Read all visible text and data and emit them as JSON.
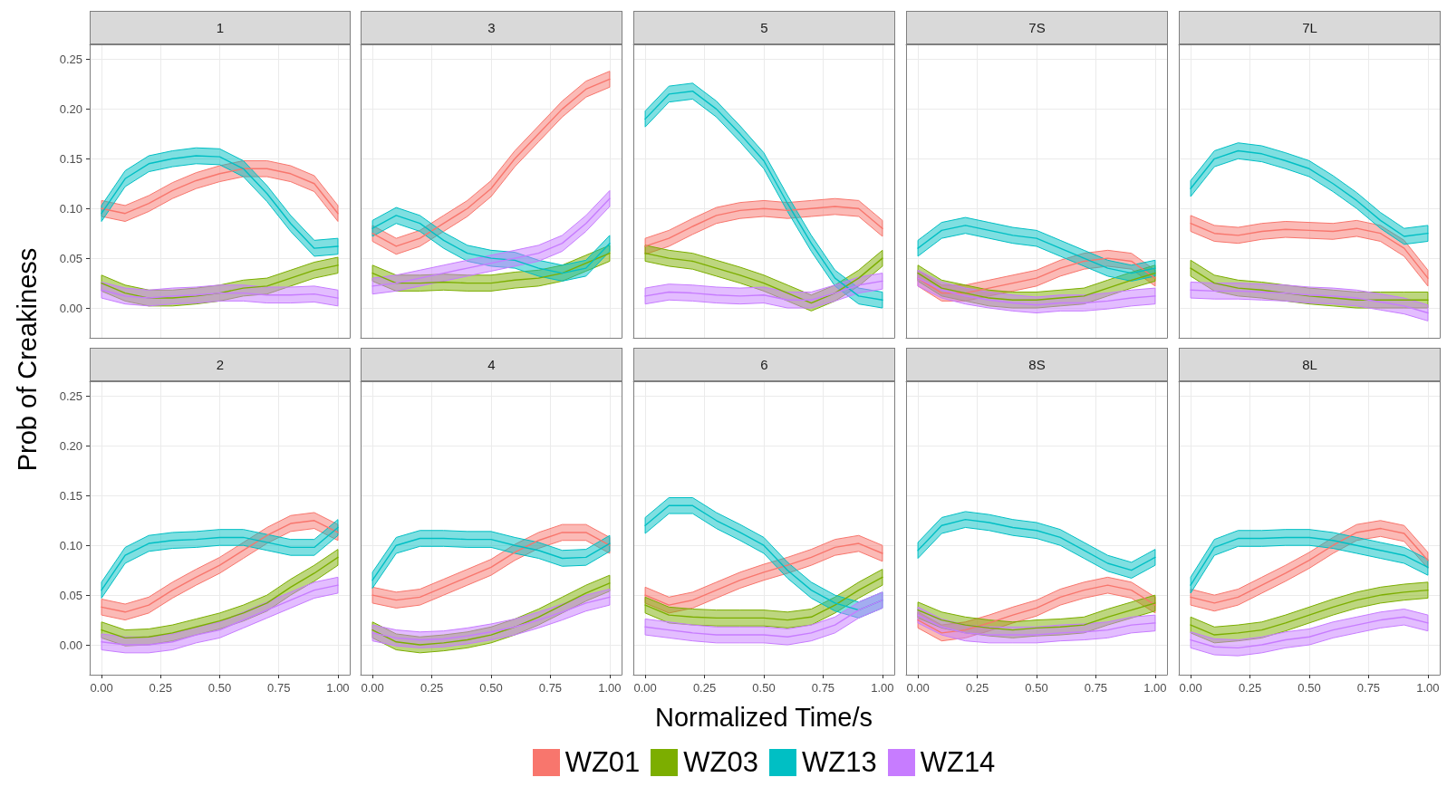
{
  "chart_data": [
    {
      "type": "line",
      "title": "1",
      "ylabel": "Prob of Creakiness",
      "grid": true,
      "tick_labels": "y",
      "x": [
        0,
        0.1,
        0.2,
        0.3,
        0.4,
        0.5,
        0.6,
        0.7,
        0.8,
        0.9,
        1
      ],
      "xlim": [
        -0.05,
        1.05
      ],
      "xticks": [
        0,
        0.25,
        0.5,
        0.75,
        1
      ],
      "ylim": [
        -0.03,
        0.265
      ],
      "yticks": [
        {
          "value": 0,
          "label": "0.00"
        },
        {
          "value": 0.05,
          "label": "0.05"
        },
        {
          "value": 0.1,
          "label": "0.10"
        },
        {
          "value": 0.15,
          "label": "0.15"
        },
        {
          "value": 0.2,
          "label": "0.20"
        },
        {
          "value": 0.25,
          "label": "0.25"
        }
      ],
      "series": [
        {
          "color": "#f8766d",
          "values": [
            0.1,
            0.095,
            0.105,
            0.118,
            0.128,
            0.135,
            0.14,
            0.14,
            0.135,
            0.125,
            0.095
          ],
          "lower": [
            0.092,
            0.087,
            0.097,
            0.11,
            0.12,
            0.127,
            0.132,
            0.132,
            0.127,
            0.117,
            0.087
          ],
          "upper": [
            0.108,
            0.103,
            0.113,
            0.126,
            0.136,
            0.143,
            0.148,
            0.148,
            0.143,
            0.133,
            0.103
          ]
        },
        {
          "color": "#7cae00",
          "values": [
            0.025,
            0.015,
            0.01,
            0.01,
            0.012,
            0.015,
            0.02,
            0.022,
            0.03,
            0.038,
            0.043
          ],
          "lower": [
            0.017,
            0.007,
            0.002,
            0.002,
            0.004,
            0.007,
            0.012,
            0.014,
            0.022,
            0.03,
            0.035
          ],
          "upper": [
            0.033,
            0.023,
            0.018,
            0.018,
            0.02,
            0.023,
            0.028,
            0.03,
            0.038,
            0.046,
            0.051
          ]
        },
        {
          "color": "#00bfc4",
          "values": [
            0.095,
            0.13,
            0.145,
            0.15,
            0.153,
            0.152,
            0.14,
            0.115,
            0.085,
            0.06,
            0.062
          ],
          "lower": [
            0.087,
            0.122,
            0.137,
            0.142,
            0.145,
            0.144,
            0.132,
            0.107,
            0.077,
            0.052,
            0.054
          ],
          "upper": [
            0.103,
            0.138,
            0.153,
            0.158,
            0.161,
            0.16,
            0.148,
            0.123,
            0.093,
            0.068,
            0.07
          ]
        },
        {
          "color": "#c77cff",
          "values": [
            0.018,
            0.012,
            0.01,
            0.012,
            0.013,
            0.015,
            0.015,
            0.013,
            0.013,
            0.014,
            0.01
          ],
          "lower": [
            0.01,
            0.004,
            0.002,
            0.004,
            0.005,
            0.007,
            0.007,
            0.005,
            0.005,
            0.006,
            0.002
          ],
          "upper": [
            0.026,
            0.02,
            0.018,
            0.02,
            0.021,
            0.023,
            0.023,
            0.021,
            0.021,
            0.022,
            0.018
          ]
        }
      ]
    },
    {
      "type": "line",
      "title": "3",
      "grid": true,
      "tick_labels": false,
      "x": [
        0,
        0.1,
        0.2,
        0.3,
        0.4,
        0.5,
        0.6,
        0.7,
        0.8,
        0.9,
        1
      ],
      "xlim": [
        -0.05,
        1.05
      ],
      "xticks": [
        0,
        0.25,
        0.5,
        0.75,
        1
      ],
      "ylim": [
        -0.03,
        0.265
      ],
      "yticks": [
        0,
        0.05,
        0.1,
        0.15,
        0.2,
        0.25
      ],
      "series": [
        {
          "color": "#f8766d",
          "values": [
            0.075,
            0.062,
            0.07,
            0.085,
            0.1,
            0.12,
            0.15,
            0.175,
            0.2,
            0.22,
            0.23
          ],
          "lower": [
            0.067,
            0.054,
            0.062,
            0.077,
            0.092,
            0.112,
            0.142,
            0.167,
            0.192,
            0.212,
            0.222
          ],
          "upper": [
            0.083,
            0.07,
            0.078,
            0.093,
            0.108,
            0.128,
            0.158,
            0.183,
            0.208,
            0.228,
            0.238
          ]
        },
        {
          "color": "#7cae00",
          "values": [
            0.035,
            0.025,
            0.025,
            0.026,
            0.025,
            0.025,
            0.028,
            0.03,
            0.035,
            0.045,
            0.055
          ],
          "lower": [
            0.027,
            0.017,
            0.017,
            0.018,
            0.017,
            0.017,
            0.02,
            0.022,
            0.027,
            0.037,
            0.047
          ],
          "upper": [
            0.043,
            0.033,
            0.033,
            0.034,
            0.033,
            0.033,
            0.036,
            0.038,
            0.043,
            0.053,
            0.063
          ]
        },
        {
          "color": "#00bfc4",
          "values": [
            0.08,
            0.093,
            0.085,
            0.068,
            0.055,
            0.05,
            0.048,
            0.04,
            0.035,
            0.04,
            0.065
          ],
          "lower": [
            0.072,
            0.085,
            0.077,
            0.06,
            0.047,
            0.042,
            0.04,
            0.032,
            0.027,
            0.032,
            0.057
          ],
          "upper": [
            0.088,
            0.101,
            0.093,
            0.076,
            0.063,
            0.058,
            0.056,
            0.048,
            0.043,
            0.048,
            0.073
          ]
        },
        {
          "color": "#c77cff",
          "values": [
            0.022,
            0.025,
            0.03,
            0.035,
            0.04,
            0.045,
            0.05,
            0.055,
            0.065,
            0.085,
            0.11
          ],
          "lower": [
            0.014,
            0.017,
            0.022,
            0.027,
            0.032,
            0.037,
            0.042,
            0.047,
            0.057,
            0.077,
            0.102
          ],
          "upper": [
            0.03,
            0.033,
            0.038,
            0.043,
            0.048,
            0.053,
            0.058,
            0.063,
            0.073,
            0.093,
            0.118
          ]
        }
      ]
    },
    {
      "type": "line",
      "title": "5",
      "grid": true,
      "tick_labels": false,
      "x": [
        0,
        0.1,
        0.2,
        0.3,
        0.4,
        0.5,
        0.6,
        0.7,
        0.8,
        0.9,
        1
      ],
      "xlim": [
        -0.05,
        1.05
      ],
      "xticks": [
        0,
        0.25,
        0.5,
        0.75,
        1
      ],
      "ylim": [
        -0.03,
        0.265
      ],
      "yticks": [
        0,
        0.05,
        0.1,
        0.15,
        0.2,
        0.25
      ],
      "series": [
        {
          "color": "#f8766d",
          "values": [
            0.062,
            0.07,
            0.082,
            0.093,
            0.098,
            0.1,
            0.098,
            0.1,
            0.102,
            0.1,
            0.08
          ],
          "lower": [
            0.054,
            0.062,
            0.074,
            0.085,
            0.09,
            0.092,
            0.09,
            0.092,
            0.094,
            0.092,
            0.072
          ],
          "upper": [
            0.07,
            0.078,
            0.09,
            0.101,
            0.106,
            0.108,
            0.106,
            0.108,
            0.11,
            0.108,
            0.088
          ]
        },
        {
          "color": "#7cae00",
          "values": [
            0.055,
            0.05,
            0.047,
            0.04,
            0.033,
            0.025,
            0.015,
            0.005,
            0.015,
            0.03,
            0.05
          ],
          "lower": [
            0.047,
            0.042,
            0.039,
            0.032,
            0.025,
            0.017,
            0.007,
            -0.003,
            0.007,
            0.022,
            0.042
          ],
          "upper": [
            0.063,
            0.058,
            0.055,
            0.048,
            0.041,
            0.033,
            0.023,
            0.013,
            0.023,
            0.038,
            0.058
          ]
        },
        {
          "color": "#00bfc4",
          "values": [
            0.19,
            0.215,
            0.218,
            0.2,
            0.175,
            0.148,
            0.105,
            0.065,
            0.03,
            0.012,
            0.008
          ],
          "lower": [
            0.182,
            0.207,
            0.21,
            0.192,
            0.167,
            0.14,
            0.097,
            0.057,
            0.022,
            0.004,
            0
          ],
          "upper": [
            0.198,
            0.223,
            0.226,
            0.208,
            0.183,
            0.156,
            0.113,
            0.073,
            0.038,
            0.02,
            0.016
          ]
        },
        {
          "color": "#c77cff",
          "values": [
            0.012,
            0.016,
            0.015,
            0.013,
            0.012,
            0.013,
            0.008,
            0.008,
            0.015,
            0.023,
            0.027
          ],
          "lower": [
            0.004,
            0.008,
            0.007,
            0.005,
            0.004,
            0.005,
            0,
            0,
            0.007,
            0.015,
            0.019
          ],
          "upper": [
            0.02,
            0.024,
            0.023,
            0.021,
            0.02,
            0.021,
            0.016,
            0.016,
            0.023,
            0.031,
            0.035
          ]
        }
      ]
    },
    {
      "type": "line",
      "title": "7S",
      "grid": true,
      "tick_labels": false,
      "x": [
        0,
        0.1,
        0.2,
        0.3,
        0.4,
        0.5,
        0.6,
        0.7,
        0.8,
        0.9,
        1
      ],
      "xlim": [
        -0.05,
        1.05
      ],
      "xticks": [
        0,
        0.25,
        0.5,
        0.75,
        1
      ],
      "ylim": [
        -0.03,
        0.265
      ],
      "yticks": [
        0,
        0.05,
        0.1,
        0.15,
        0.2,
        0.25
      ],
      "series": [
        {
          "color": "#f8766d",
          "values": [
            0.03,
            0.015,
            0.015,
            0.02,
            0.025,
            0.03,
            0.04,
            0.047,
            0.05,
            0.047,
            0.03
          ],
          "lower": [
            0.022,
            0.007,
            0.007,
            0.012,
            0.017,
            0.022,
            0.032,
            0.039,
            0.042,
            0.039,
            0.022
          ],
          "upper": [
            0.038,
            0.023,
            0.023,
            0.028,
            0.033,
            0.038,
            0.048,
            0.055,
            0.058,
            0.055,
            0.038
          ]
        },
        {
          "color": "#7cae00",
          "values": [
            0.035,
            0.02,
            0.015,
            0.01,
            0.008,
            0.008,
            0.01,
            0.012,
            0.02,
            0.028,
            0.035
          ],
          "lower": [
            0.027,
            0.012,
            0.007,
            0.002,
            0,
            0,
            0.002,
            0.004,
            0.012,
            0.02,
            0.027
          ],
          "upper": [
            0.043,
            0.028,
            0.023,
            0.018,
            0.016,
            0.016,
            0.018,
            0.02,
            0.028,
            0.036,
            0.043
          ]
        },
        {
          "color": "#00bfc4",
          "values": [
            0.06,
            0.078,
            0.083,
            0.078,
            0.073,
            0.07,
            0.06,
            0.05,
            0.04,
            0.035,
            0.04
          ],
          "lower": [
            0.052,
            0.07,
            0.075,
            0.07,
            0.065,
            0.062,
            0.052,
            0.042,
            0.032,
            0.027,
            0.032
          ],
          "upper": [
            0.068,
            0.086,
            0.091,
            0.086,
            0.081,
            0.078,
            0.068,
            0.058,
            0.048,
            0.043,
            0.048
          ]
        },
        {
          "color": "#c77cff",
          "values": [
            0.03,
            0.018,
            0.012,
            0.008,
            0.005,
            0.003,
            0.005,
            0.005,
            0.007,
            0.01,
            0.012
          ],
          "lower": [
            0.022,
            0.01,
            0.004,
            0,
            -0.003,
            -0.005,
            -0.003,
            -0.003,
            -0.001,
            0.002,
            0.004
          ],
          "upper": [
            0.038,
            0.026,
            0.02,
            0.016,
            0.013,
            0.011,
            0.013,
            0.013,
            0.015,
            0.018,
            0.02
          ]
        }
      ]
    },
    {
      "type": "line",
      "title": "7L",
      "grid": true,
      "tick_labels": false,
      "x": [
        0,
        0.1,
        0.2,
        0.3,
        0.4,
        0.5,
        0.6,
        0.7,
        0.8,
        0.9,
        1
      ],
      "xlim": [
        -0.05,
        1.05
      ],
      "xticks": [
        0,
        0.25,
        0.5,
        0.75,
        1
      ],
      "ylim": [
        -0.03,
        0.265
      ],
      "yticks": [
        0,
        0.05,
        0.1,
        0.15,
        0.2,
        0.25
      ],
      "series": [
        {
          "color": "#f8766d",
          "values": [
            0.085,
            0.075,
            0.073,
            0.077,
            0.079,
            0.078,
            0.077,
            0.08,
            0.075,
            0.06,
            0.03
          ],
          "lower": [
            0.077,
            0.067,
            0.065,
            0.069,
            0.071,
            0.07,
            0.069,
            0.072,
            0.067,
            0.052,
            0.022
          ],
          "upper": [
            0.093,
            0.083,
            0.081,
            0.085,
            0.087,
            0.086,
            0.085,
            0.088,
            0.083,
            0.068,
            0.038
          ]
        },
        {
          "color": "#7cae00",
          "values": [
            0.04,
            0.025,
            0.02,
            0.018,
            0.015,
            0.012,
            0.01,
            0.008,
            0.008,
            0.008,
            0.008
          ],
          "lower": [
            0.032,
            0.017,
            0.012,
            0.01,
            0.007,
            0.004,
            0.002,
            0,
            0,
            0,
            0
          ],
          "upper": [
            0.048,
            0.033,
            0.028,
            0.026,
            0.023,
            0.02,
            0.018,
            0.016,
            0.016,
            0.016,
            0.016
          ]
        },
        {
          "color": "#00bfc4",
          "values": [
            0.12,
            0.15,
            0.158,
            0.155,
            0.148,
            0.14,
            0.125,
            0.108,
            0.088,
            0.072,
            0.075
          ],
          "lower": [
            0.112,
            0.142,
            0.15,
            0.147,
            0.14,
            0.132,
            0.117,
            0.1,
            0.08,
            0.064,
            0.067
          ],
          "upper": [
            0.128,
            0.158,
            0.166,
            0.163,
            0.156,
            0.148,
            0.133,
            0.116,
            0.096,
            0.08,
            0.083
          ]
        },
        {
          "color": "#c77cff",
          "values": [
            0.018,
            0.017,
            0.017,
            0.016,
            0.015,
            0.013,
            0.012,
            0.01,
            0.006,
            0.002,
            -0.005
          ],
          "lower": [
            0.01,
            0.009,
            0.009,
            0.008,
            0.007,
            0.005,
            0.004,
            0.002,
            -0.002,
            -0.006,
            -0.013
          ],
          "upper": [
            0.026,
            0.025,
            0.025,
            0.024,
            0.023,
            0.021,
            0.02,
            0.018,
            0.014,
            0.01,
            0.003
          ]
        }
      ]
    },
    {
      "type": "line",
      "title": "2",
      "grid": true,
      "x": [
        0,
        0.1,
        0.2,
        0.3,
        0.4,
        0.5,
        0.6,
        0.7,
        0.8,
        0.9,
        1
      ],
      "xlim": [
        -0.05,
        1.05
      ],
      "xticks": [
        {
          "value": 0,
          "label": "0.00"
        },
        {
          "value": 0.25,
          "label": "0.25"
        },
        {
          "value": 0.5,
          "label": "0.50"
        },
        {
          "value": 0.75,
          "label": "0.75"
        },
        {
          "value": 1,
          "label": "1.00"
        }
      ],
      "ylim": [
        -0.03,
        0.265
      ],
      "yticks": [
        {
          "value": 0,
          "label": "0.00"
        },
        {
          "value": 0.05,
          "label": "0.05"
        },
        {
          "value": 0.1,
          "label": "0.10"
        },
        {
          "value": 0.15,
          "label": "0.15"
        },
        {
          "value": 0.2,
          "label": "0.20"
        },
        {
          "value": 0.25,
          "label": "0.25"
        }
      ],
      "series": [
        {
          "color": "#f8766d",
          "values": [
            0.038,
            0.033,
            0.04,
            0.055,
            0.068,
            0.08,
            0.095,
            0.11,
            0.122,
            0.125,
            0.113
          ],
          "lower": [
            0.03,
            0.025,
            0.032,
            0.047,
            0.06,
            0.072,
            0.087,
            0.102,
            0.114,
            0.117,
            0.105
          ],
          "upper": [
            0.046,
            0.041,
            0.048,
            0.063,
            0.076,
            0.088,
            0.103,
            0.118,
            0.13,
            0.133,
            0.121
          ]
        },
        {
          "color": "#7cae00",
          "values": [
            0.015,
            0.007,
            0.008,
            0.012,
            0.018,
            0.024,
            0.032,
            0.042,
            0.058,
            0.072,
            0.088
          ],
          "lower": [
            0.007,
            -0.001,
            0,
            0.004,
            0.01,
            0.016,
            0.024,
            0.034,
            0.05,
            0.064,
            0.08
          ],
          "upper": [
            0.023,
            0.015,
            0.016,
            0.02,
            0.026,
            0.032,
            0.04,
            0.05,
            0.066,
            0.08,
            0.096
          ]
        },
        {
          "color": "#00bfc4",
          "values": [
            0.055,
            0.09,
            0.102,
            0.105,
            0.106,
            0.108,
            0.108,
            0.103,
            0.098,
            0.098,
            0.118
          ],
          "lower": [
            0.047,
            0.082,
            0.094,
            0.097,
            0.098,
            0.1,
            0.1,
            0.095,
            0.09,
            0.09,
            0.11
          ],
          "upper": [
            0.063,
            0.098,
            0.11,
            0.113,
            0.114,
            0.116,
            0.116,
            0.111,
            0.106,
            0.106,
            0.126
          ]
        },
        {
          "color": "#c77cff",
          "values": [
            0.003,
            0,
            0,
            0.003,
            0.01,
            0.015,
            0.025,
            0.035,
            0.045,
            0.055,
            0.06
          ],
          "lower": [
            -0.005,
            -0.008,
            -0.008,
            -0.005,
            0.002,
            0.007,
            0.017,
            0.027,
            0.037,
            0.047,
            0.052
          ],
          "upper": [
            0.011,
            0.008,
            0.008,
            0.011,
            0.018,
            0.023,
            0.033,
            0.043,
            0.053,
            0.063,
            0.068
          ]
        }
      ]
    },
    {
      "type": "line",
      "title": "4",
      "grid": true,
      "tick_labels": "x",
      "x": [
        0,
        0.1,
        0.2,
        0.3,
        0.4,
        0.5,
        0.6,
        0.7,
        0.8,
        0.9,
        1
      ],
      "xlim": [
        -0.05,
        1.05
      ],
      "xticks": [
        {
          "value": 0,
          "label": "0.00"
        },
        {
          "value": 0.25,
          "label": "0.25"
        },
        {
          "value": 0.5,
          "label": "0.50"
        },
        {
          "value": 0.75,
          "label": "0.75"
        },
        {
          "value": 1,
          "label": "1.00"
        }
      ],
      "ylim": [
        -0.03,
        0.265
      ],
      "yticks": [
        0,
        0.05,
        0.1,
        0.15,
        0.2,
        0.25
      ],
      "series": [
        {
          "color": "#f8766d",
          "values": [
            0.05,
            0.045,
            0.048,
            0.058,
            0.068,
            0.078,
            0.093,
            0.105,
            0.113,
            0.113,
            0.1
          ],
          "lower": [
            0.042,
            0.037,
            0.04,
            0.05,
            0.06,
            0.07,
            0.085,
            0.097,
            0.105,
            0.105,
            0.092
          ],
          "upper": [
            0.058,
            0.053,
            0.056,
            0.066,
            0.076,
            0.086,
            0.101,
            0.113,
            0.121,
            0.121,
            0.108
          ]
        },
        {
          "color": "#7cae00",
          "values": [
            0.015,
            0.003,
            0,
            0.002,
            0.005,
            0.01,
            0.018,
            0.028,
            0.04,
            0.052,
            0.062
          ],
          "lower": [
            0.007,
            -0.005,
            -0.008,
            -0.006,
            -0.003,
            0.002,
            0.01,
            0.02,
            0.032,
            0.044,
            0.054
          ],
          "upper": [
            0.023,
            0.011,
            0.008,
            0.01,
            0.013,
            0.018,
            0.026,
            0.036,
            0.048,
            0.06,
            0.07
          ]
        },
        {
          "color": "#00bfc4",
          "values": [
            0.065,
            0.1,
            0.107,
            0.107,
            0.106,
            0.106,
            0.1,
            0.095,
            0.087,
            0.088,
            0.102
          ],
          "lower": [
            0.057,
            0.092,
            0.099,
            0.099,
            0.098,
            0.098,
            0.092,
            0.087,
            0.079,
            0.08,
            0.094
          ],
          "upper": [
            0.073,
            0.108,
            0.115,
            0.115,
            0.114,
            0.114,
            0.108,
            0.103,
            0.095,
            0.096,
            0.11
          ]
        },
        {
          "color": "#c77cff",
          "values": [
            0.012,
            0.007,
            0.005,
            0.006,
            0.009,
            0.013,
            0.018,
            0.025,
            0.033,
            0.042,
            0.048
          ],
          "lower": [
            0.004,
            -0.001,
            -0.003,
            -0.002,
            0.001,
            0.005,
            0.01,
            0.017,
            0.025,
            0.034,
            0.04
          ],
          "upper": [
            0.02,
            0.015,
            0.013,
            0.014,
            0.017,
            0.021,
            0.026,
            0.033,
            0.041,
            0.05,
            0.056
          ]
        }
      ]
    },
    {
      "type": "line",
      "title": "6",
      "xlabel": "Normalized Time/s",
      "legend": "bottom",
      "grid": true,
      "tick_labels": "x",
      "x": [
        0,
        0.1,
        0.2,
        0.3,
        0.4,
        0.5,
        0.6,
        0.7,
        0.8,
        0.9,
        1
      ],
      "xlim": [
        -0.05,
        1.05
      ],
      "xticks": [
        {
          "value": 0,
          "label": "0.00"
        },
        {
          "value": 0.25,
          "label": "0.25"
        },
        {
          "value": 0.5,
          "label": "0.50"
        },
        {
          "value": 0.75,
          "label": "0.75"
        },
        {
          "value": 1,
          "label": "1.00"
        }
      ],
      "ylim": [
        -0.03,
        0.265
      ],
      "yticks": [
        0,
        0.05,
        0.1,
        0.15,
        0.2,
        0.25
      ],
      "series": [
        {
          "name": "WZ01",
          "color": "#f8766d",
          "values": [
            0.05,
            0.04,
            0.045,
            0.055,
            0.065,
            0.073,
            0.08,
            0.088,
            0.098,
            0.102,
            0.092
          ],
          "lower": [
            0.042,
            0.032,
            0.037,
            0.047,
            0.057,
            0.065,
            0.072,
            0.08,
            0.09,
            0.094,
            0.084
          ],
          "upper": [
            0.058,
            0.048,
            0.053,
            0.063,
            0.073,
            0.081,
            0.088,
            0.096,
            0.106,
            0.11,
            0.1
          ]
        },
        {
          "name": "WZ03",
          "color": "#7cae00",
          "values": [
            0.04,
            0.03,
            0.028,
            0.027,
            0.027,
            0.027,
            0.025,
            0.028,
            0.04,
            0.055,
            0.068
          ],
          "lower": [
            0.032,
            0.022,
            0.02,
            0.019,
            0.019,
            0.019,
            0.017,
            0.02,
            0.032,
            0.047,
            0.06
          ],
          "upper": [
            0.048,
            0.038,
            0.036,
            0.035,
            0.035,
            0.035,
            0.033,
            0.036,
            0.048,
            0.063,
            0.076
          ]
        },
        {
          "name": "WZ13",
          "color": "#00bfc4",
          "values": [
            0.12,
            0.14,
            0.14,
            0.125,
            0.113,
            0.1,
            0.075,
            0.055,
            0.042,
            0.035,
            0.045
          ],
          "lower": [
            0.112,
            0.132,
            0.132,
            0.117,
            0.105,
            0.092,
            0.067,
            0.047,
            0.034,
            0.027,
            0.037
          ],
          "upper": [
            0.128,
            0.148,
            0.148,
            0.133,
            0.121,
            0.108,
            0.083,
            0.063,
            0.05,
            0.043,
            0.053
          ]
        },
        {
          "name": "WZ14",
          "color": "#c77cff",
          "values": [
            0.018,
            0.015,
            0.012,
            0.01,
            0.01,
            0.01,
            0.008,
            0.012,
            0.02,
            0.035,
            0.045
          ],
          "lower": [
            0.01,
            0.007,
            0.004,
            0.002,
            0.002,
            0.002,
            0,
            0.004,
            0.012,
            0.027,
            0.037
          ],
          "upper": [
            0.026,
            0.023,
            0.02,
            0.018,
            0.018,
            0.018,
            0.016,
            0.02,
            0.028,
            0.043,
            0.053
          ]
        }
      ]
    },
    {
      "type": "line",
      "title": "8S",
      "grid": true,
      "tick_labels": "x",
      "x": [
        0,
        0.1,
        0.2,
        0.3,
        0.4,
        0.5,
        0.6,
        0.7,
        0.8,
        0.9,
        1
      ],
      "xlim": [
        -0.05,
        1.05
      ],
      "xticks": [
        {
          "value": 0,
          "label": "0.00"
        },
        {
          "value": 0.25,
          "label": "0.25"
        },
        {
          "value": 0.5,
          "label": "0.50"
        },
        {
          "value": 0.75,
          "label": "0.75"
        },
        {
          "value": 1,
          "label": "1.00"
        }
      ],
      "ylim": [
        -0.03,
        0.265
      ],
      "yticks": [
        0,
        0.05,
        0.1,
        0.15,
        0.2,
        0.25
      ],
      "series": [
        {
          "color": "#f8766d",
          "values": [
            0.025,
            0.012,
            0.015,
            0.022,
            0.03,
            0.037,
            0.048,
            0.055,
            0.06,
            0.055,
            0.04
          ],
          "lower": [
            0.017,
            0.004,
            0.007,
            0.014,
            0.022,
            0.029,
            0.04,
            0.047,
            0.052,
            0.047,
            0.032
          ],
          "upper": [
            0.033,
            0.02,
            0.023,
            0.03,
            0.038,
            0.045,
            0.056,
            0.063,
            0.068,
            0.063,
            0.048
          ]
        },
        {
          "color": "#7cae00",
          "values": [
            0.035,
            0.025,
            0.02,
            0.017,
            0.015,
            0.017,
            0.018,
            0.02,
            0.028,
            0.035,
            0.042
          ],
          "lower": [
            0.027,
            0.017,
            0.012,
            0.009,
            0.007,
            0.009,
            0.01,
            0.012,
            0.02,
            0.027,
            0.034
          ],
          "upper": [
            0.043,
            0.033,
            0.028,
            0.025,
            0.023,
            0.025,
            0.026,
            0.028,
            0.036,
            0.043,
            0.05
          ]
        },
        {
          "color": "#00bfc4",
          "values": [
            0.095,
            0.12,
            0.126,
            0.123,
            0.118,
            0.115,
            0.108,
            0.095,
            0.082,
            0.075,
            0.088
          ],
          "lower": [
            0.087,
            0.112,
            0.118,
            0.115,
            0.11,
            0.107,
            0.1,
            0.087,
            0.074,
            0.067,
            0.08
          ],
          "upper": [
            0.103,
            0.128,
            0.134,
            0.131,
            0.126,
            0.123,
            0.116,
            0.103,
            0.09,
            0.083,
            0.096
          ]
        },
        {
          "color": "#c77cff",
          "values": [
            0.03,
            0.018,
            0.012,
            0.01,
            0.01,
            0.01,
            0.012,
            0.013,
            0.015,
            0.02,
            0.022
          ],
          "lower": [
            0.022,
            0.01,
            0.004,
            0.002,
            0.002,
            0.002,
            0.004,
            0.005,
            0.007,
            0.012,
            0.014
          ],
          "upper": [
            0.038,
            0.026,
            0.02,
            0.018,
            0.018,
            0.018,
            0.02,
            0.021,
            0.023,
            0.028,
            0.03
          ]
        }
      ]
    },
    {
      "type": "line",
      "title": "8L",
      "grid": true,
      "tick_labels": "x",
      "x": [
        0,
        0.1,
        0.2,
        0.3,
        0.4,
        0.5,
        0.6,
        0.7,
        0.8,
        0.9,
        1
      ],
      "xlim": [
        -0.05,
        1.05
      ],
      "xticks": [
        {
          "value": 0,
          "label": "0.00"
        },
        {
          "value": 0.25,
          "label": "0.25"
        },
        {
          "value": 0.5,
          "label": "0.50"
        },
        {
          "value": 0.75,
          "label": "0.75"
        },
        {
          "value": 1,
          "label": "1.00"
        }
      ],
      "ylim": [
        -0.03,
        0.265
      ],
      "yticks": [
        0,
        0.05,
        0.1,
        0.15,
        0.2,
        0.25
      ],
      "series": [
        {
          "color": "#f8766d",
          "values": [
            0.048,
            0.042,
            0.048,
            0.06,
            0.072,
            0.085,
            0.1,
            0.113,
            0.117,
            0.112,
            0.085
          ],
          "lower": [
            0.04,
            0.034,
            0.04,
            0.052,
            0.064,
            0.077,
            0.092,
            0.105,
            0.109,
            0.104,
            0.077
          ],
          "upper": [
            0.056,
            0.05,
            0.056,
            0.068,
            0.08,
            0.093,
            0.108,
            0.121,
            0.125,
            0.12,
            0.093
          ]
        },
        {
          "color": "#7cae00",
          "values": [
            0.02,
            0.01,
            0.012,
            0.015,
            0.022,
            0.03,
            0.038,
            0.045,
            0.05,
            0.053,
            0.055
          ],
          "lower": [
            0.012,
            0.002,
            0.004,
            0.007,
            0.014,
            0.022,
            0.03,
            0.037,
            0.042,
            0.045,
            0.047
          ],
          "upper": [
            0.028,
            0.018,
            0.02,
            0.023,
            0.03,
            0.038,
            0.046,
            0.053,
            0.058,
            0.061,
            0.063
          ]
        },
        {
          "color": "#00bfc4",
          "values": [
            0.06,
            0.098,
            0.107,
            0.107,
            0.108,
            0.108,
            0.105,
            0.1,
            0.095,
            0.09,
            0.078
          ],
          "lower": [
            0.052,
            0.09,
            0.099,
            0.099,
            0.1,
            0.1,
            0.097,
            0.092,
            0.087,
            0.082,
            0.07
          ],
          "upper": [
            0.068,
            0.106,
            0.115,
            0.115,
            0.116,
            0.116,
            0.113,
            0.108,
            0.103,
            0.098,
            0.086
          ]
        },
        {
          "color": "#c77cff",
          "values": [
            0.005,
            -0.002,
            -0.003,
            0,
            0.005,
            0.008,
            0.015,
            0.02,
            0.025,
            0.028,
            0.022
          ],
          "lower": [
            -0.003,
            -0.01,
            -0.011,
            -0.008,
            -0.003,
            0,
            0.007,
            0.012,
            0.017,
            0.02,
            0.014
          ],
          "upper": [
            0.013,
            0.006,
            0.005,
            0.008,
            0.013,
            0.016,
            0.023,
            0.028,
            0.033,
            0.036,
            0.03
          ]
        }
      ]
    }
  ]
}
